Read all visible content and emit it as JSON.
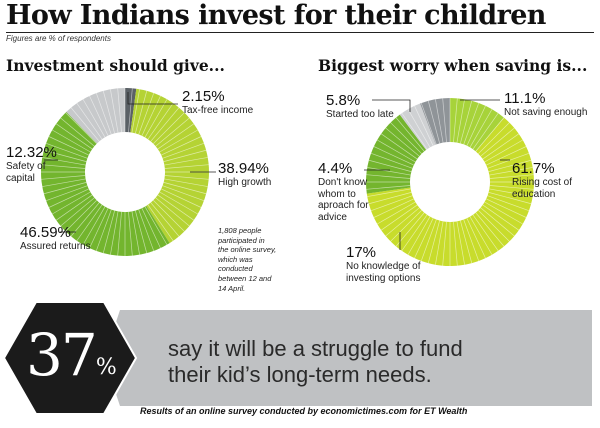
{
  "header": {
    "title": "How Indians invest for their children",
    "subtitle": "Figures are % of respondents"
  },
  "chart_data": [
    {
      "type": "pie",
      "donut": true,
      "title": "Investment should give...",
      "slices": [
        {
          "label": "Tax-free income",
          "value": 2.15,
          "color": "#5b6166"
        },
        {
          "label": "High growth",
          "value": 38.94,
          "color": "#b5d334"
        },
        {
          "label": "Assured returns",
          "value": 46.59,
          "color": "#73b52e"
        },
        {
          "label": "Safety of\ncapital",
          "value": 12.32,
          "color": "#c7c9cb"
        }
      ],
      "value_labels": [
        "2.15%",
        "38.94%",
        "46.59%",
        "12.32%"
      ]
    },
    {
      "type": "pie",
      "donut": true,
      "title": "Biggest worry when saving is...",
      "slices": [
        {
          "label": "Not saving enough",
          "value": 11.1,
          "color": "#a7d33a"
        },
        {
          "label": "Rising cost of\neducation",
          "value": 61.7,
          "color": "#c8dc2c"
        },
        {
          "label": "No knowledge of\ninvesting options",
          "value": 17,
          "color": "#74b52e"
        },
        {
          "label": "Don't know\nwhom to\naproach for\nadvice",
          "value": 4.4,
          "color": "#cfd1d3"
        },
        {
          "label": "Started too late",
          "value": 5.8,
          "color": "#8f9498"
        }
      ],
      "value_labels": [
        "11.1%",
        "61.7%",
        "17%",
        "4.4%",
        "5.8%"
      ],
      "highlight_color": "#555a5e"
    }
  ],
  "note": "1,808 people\nparticipated in\nthe online survey,\nwhich was\nconducted\nbetween 12 and\n14 April.",
  "banner": {
    "stat_number": "37",
    "stat_unit": "%",
    "statement": "say it will be a struggle to fund\ntheir kid’s long-term needs.",
    "source": "Results of an online survey conducted by economictimes.com for ET Wealth",
    "hexagon_color": "#1b1b1b",
    "band_color": "#bfc1c3"
  }
}
